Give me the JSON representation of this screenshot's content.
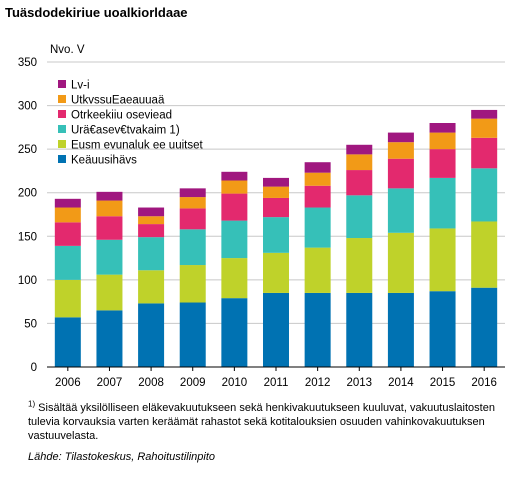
{
  "title": "Tuäsdodekiriue uoalkiorldaae",
  "footnote": {
    "marker": "1)",
    "text": " Sisältää yksilölliseen eläkevakuutukseen sekä henkivakuutukseen kuuluvat, vakuutuslaitosten tulevia korvauksia varten keräämät rahastot sekä kotitalouksien osuuden vahinkovakuutuksen vastuuvelasta."
  },
  "source": "Lähde: Tilastokeskus, Rahoitustilinpito",
  "chart_data": {
    "type": "bar",
    "stacked": true,
    "ylabel": "Nvo. V",
    "ylim": [
      0,
      350
    ],
    "yticks": [
      0,
      50,
      100,
      150,
      200,
      250,
      300,
      350
    ],
    "grid": true,
    "legend_position": "top-left",
    "categories": [
      "2006",
      "2007",
      "2008",
      "2009",
      "2010",
      "2011",
      "2012",
      "2013",
      "2014",
      "2015",
      "2016"
    ],
    "series": [
      {
        "name": "Keäuusihävs",
        "color": "#0072b2",
        "values": [
          57,
          65,
          73,
          74,
          79,
          85,
          85,
          85,
          85,
          87,
          91
        ]
      },
      {
        "name": "Eusm evunaluk ee uuitset",
        "color": "#bfd22a",
        "values": [
          43,
          41,
          38,
          43,
          46,
          46,
          52,
          63,
          69,
          72,
          76
        ]
      },
      {
        "name": "Urä€asev€tvakaim 1)",
        "color": "#36c0b8",
        "values": [
          39,
          40,
          38,
          41,
          43,
          41,
          46,
          49,
          51,
          58,
          61
        ]
      },
      {
        "name": "Otrkeekiiu oseviead",
        "color": "#e3296e",
        "values": [
          27,
          27,
          15,
          24,
          31,
          22,
          25,
          29,
          34,
          33,
          35
        ]
      },
      {
        "name": "UtkvssuEaeauuaä",
        "color": "#f29a17",
        "values": [
          17,
          18,
          9,
          13,
          15,
          13,
          15,
          18,
          19,
          19,
          22
        ]
      },
      {
        "name": "Lv-i",
        "color": "#a0177f",
        "values": [
          10,
          10,
          10,
          10,
          10,
          10,
          12,
          11,
          11,
          11,
          10
        ]
      }
    ]
  }
}
